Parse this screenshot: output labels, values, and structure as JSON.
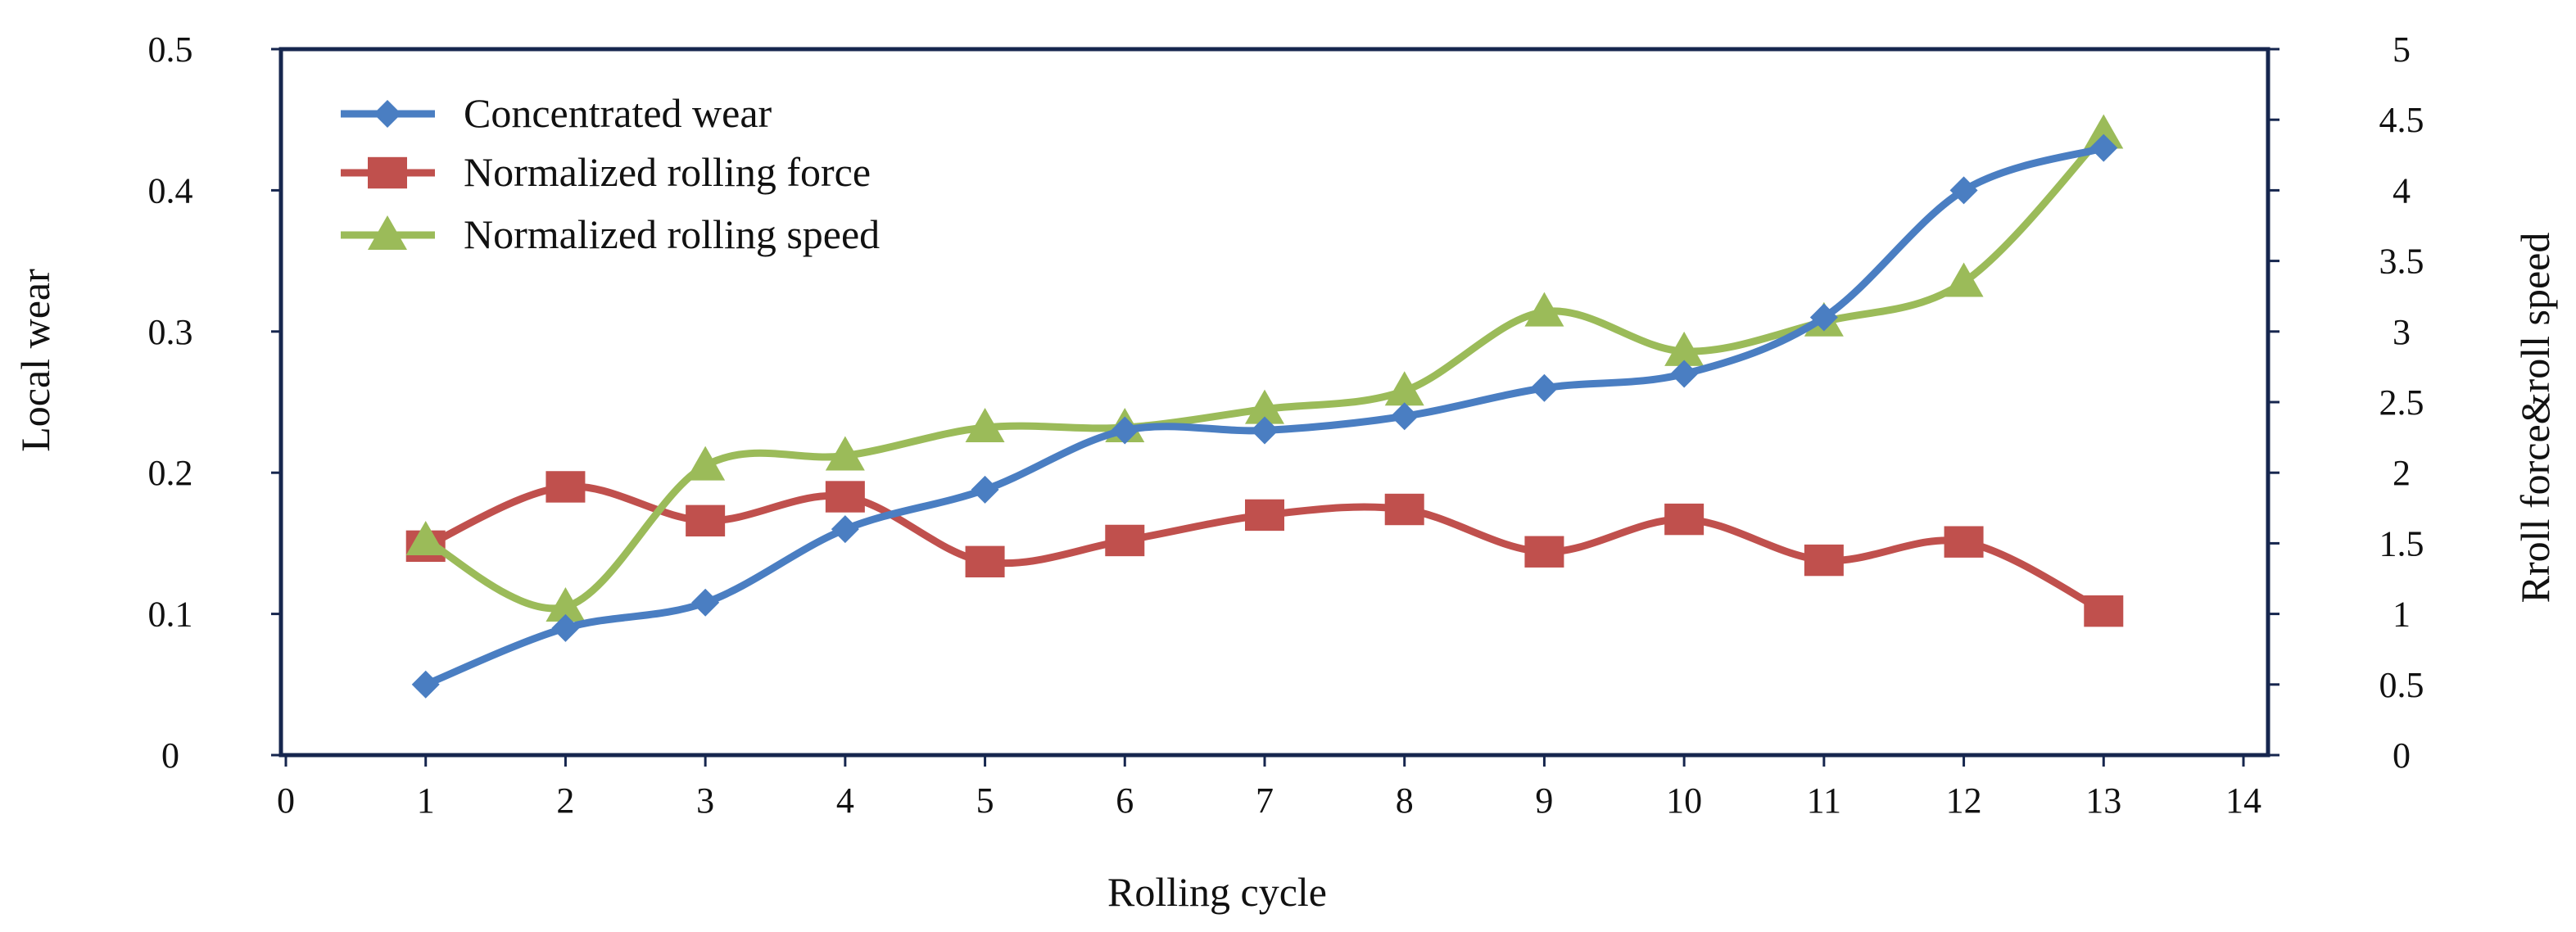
{
  "chart_data": {
    "type": "line",
    "title": "",
    "xlabel": "Rolling cycle",
    "ylabel": "Local wear",
    "y2label": "Rroll force&roll speed",
    "xlim": [
      0,
      14
    ],
    "ylim": [
      0,
      0.5
    ],
    "y2lim": [
      0,
      5
    ],
    "x_ticks": [
      "0",
      "1",
      "2",
      "3",
      "4",
      "5",
      "6",
      "7",
      "8",
      "9",
      "10",
      "11",
      "12",
      "13",
      "14"
    ],
    "y_ticks": [
      "0",
      "0.1",
      "0.2",
      "0.3",
      "0.4",
      "0.5"
    ],
    "y2_ticks": [
      "0",
      "0.5",
      "1",
      "1.5",
      "2",
      "2.5",
      "3",
      "3.5",
      "4",
      "4.5",
      "5"
    ],
    "grid": false,
    "legend_position": "top-left",
    "x": [
      1,
      2,
      3,
      4,
      5,
      6,
      7,
      8,
      9,
      10,
      11,
      12,
      13
    ],
    "series": [
      {
        "name": "Concentrated wear",
        "axis": "left",
        "marker": "diamond",
        "color": "#4A7EC2",
        "values": [
          0.05,
          0.09,
          0.108,
          0.16,
          0.188,
          0.23,
          0.23,
          0.24,
          0.26,
          0.27,
          0.31,
          0.4,
          0.43
        ]
      },
      {
        "name": "Normalized rolling force",
        "axis": "right",
        "marker": "square",
        "color": "#C0504D",
        "values": [
          1.48,
          1.9,
          1.66,
          1.83,
          1.37,
          1.52,
          1.7,
          1.74,
          1.44,
          1.67,
          1.38,
          1.51,
          1.02
        ]
      },
      {
        "name": "Normalized rolling speed",
        "axis": "right",
        "marker": "triangle",
        "color": "#9BBB59",
        "values": [
          1.52,
          1.05,
          2.05,
          2.12,
          2.32,
          2.32,
          2.45,
          2.58,
          3.14,
          2.86,
          3.07,
          3.35,
          4.4
        ]
      }
    ]
  }
}
